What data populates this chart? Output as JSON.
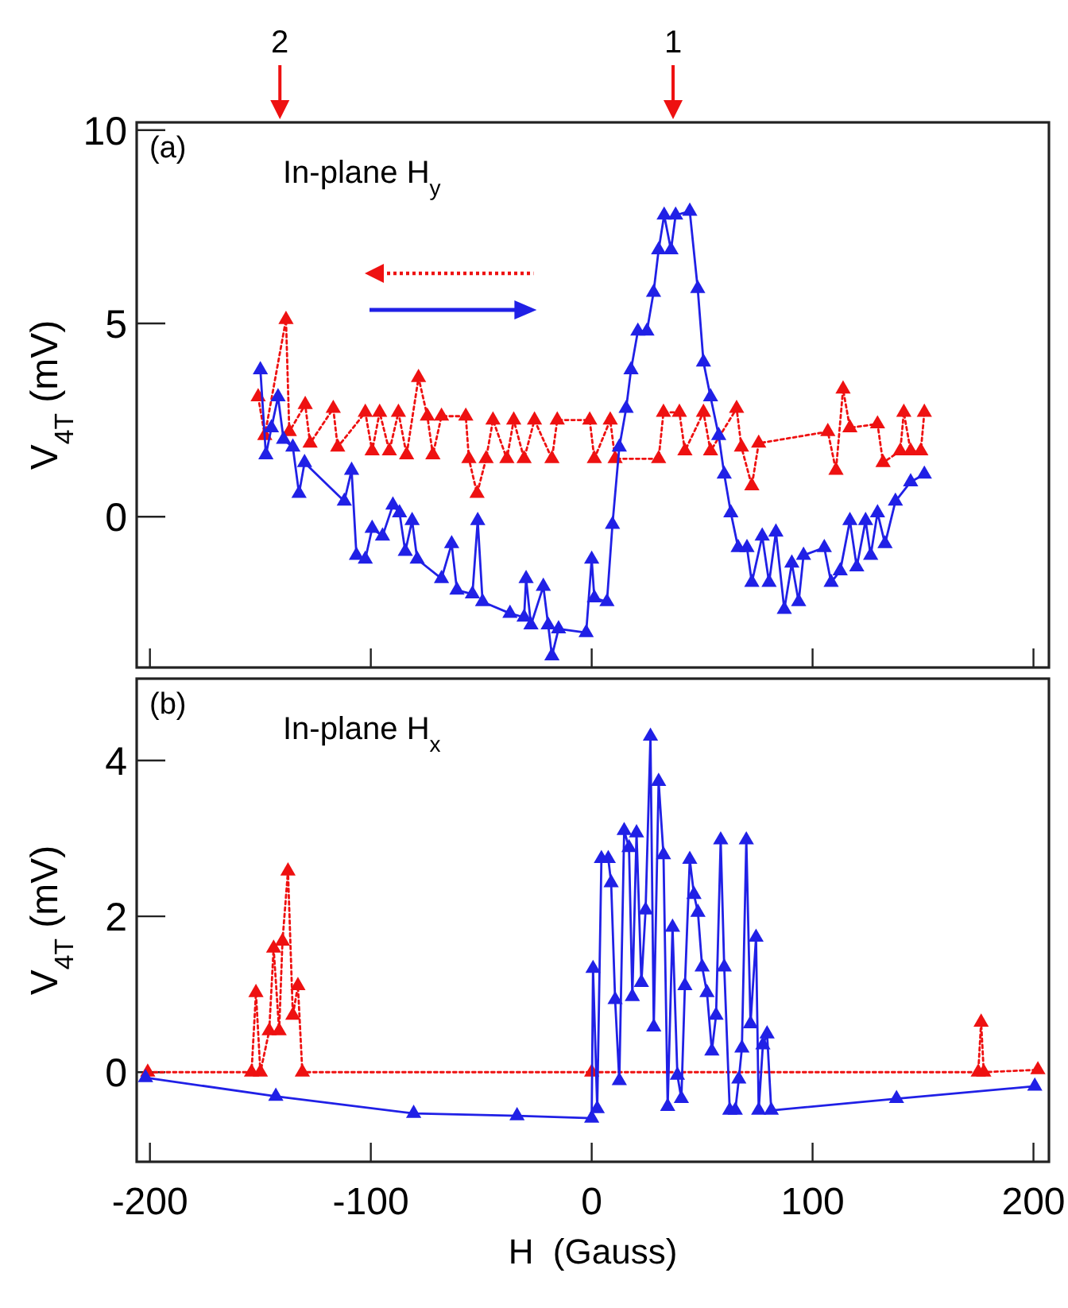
{
  "chart_data": [
    {
      "type": "line",
      "ylabel": "V$_{4T}$ (mV)",
      "xlim": [
        -206,
        207
      ],
      "xticks": [
        -200,
        -100,
        0,
        100,
        200
      ],
      "ylim": [
        -3.9,
        10.2
      ],
      "yticks": [
        0,
        5,
        10
      ],
      "tick_labels": "y",
      "marker": "triangle",
      "annotations": [
        "(a)",
        "In-plane H$_{y}$",
        "2",
        "1"
      ],
      "series": [
        {
          "color": "#ee1111",
          "line_style": "dotted",
          "x": [
            -151,
            -148,
            -138.4,
            -136.9,
            -129.7,
            -127.5,
            -117,
            -115,
            -102.5,
            -99.4,
            -96,
            -91.6,
            -87.5,
            -83.8,
            -78.4,
            -74.4,
            -71.9,
            -68,
            -57,
            -55.6,
            -51.9,
            -47.8,
            -44.7,
            -38.4,
            -35.3,
            -30.6,
            -25.9,
            -18,
            -15.6,
            -0.9,
            1.2,
            8.4,
            10.6,
            30.3,
            32.5,
            39.7,
            42.2,
            50.6,
            53.8,
            65.6,
            67.8,
            72.5,
            75.6,
            106.9,
            110.6,
            113.8,
            116.9,
            129.4,
            131.9,
            139.7,
            141.3,
            144.4,
            149,
            150.6
          ],
          "values": [
            3.1,
            2.1,
            5.1,
            2.2,
            2.9,
            1.9,
            2.8,
            1.8,
            2.7,
            1.7,
            2.7,
            1.7,
            2.7,
            1.6,
            3.6,
            2.6,
            1.6,
            2.6,
            2.6,
            1.5,
            0.6,
            1.5,
            2.5,
            1.5,
            2.5,
            1.5,
            2.5,
            1.5,
            2.5,
            2.5,
            1.5,
            2.5,
            1.5,
            1.5,
            2.7,
            2.7,
            1.7,
            2.7,
            1.7,
            2.8,
            1.8,
            0.8,
            1.9,
            2.2,
            1.2,
            3.3,
            2.3,
            2.4,
            1.4,
            1.7,
            2.7,
            1.7,
            1.7,
            2.7
          ]
        },
        {
          "color": "#2020e6",
          "line_style": "solid",
          "x": [
            -150,
            -147.5,
            -145,
            -142,
            -139.5,
            -135.3,
            -132.5,
            -130,
            -112,
            -108.7,
            -106.5,
            -102.5,
            -99.4,
            -94.7,
            -90,
            -87,
            -84.4,
            -81.3,
            -79,
            -68,
            -63.4,
            -61,
            -54,
            -51.6,
            -49.4,
            -37,
            -30.6,
            -29.7,
            -27.5,
            -21.9,
            -19.7,
            -18,
            -15,
            -2.5,
            0,
            1.2,
            6.9,
            9.4,
            12.5,
            15.6,
            17.8,
            20.9,
            25,
            28,
            30.3,
            32.8,
            35.9,
            38,
            44.4,
            48,
            50.6,
            53.8,
            57.5,
            60,
            63,
            66.3,
            70.3,
            72.5,
            77.2,
            80.3,
            83.4,
            87.2,
            90.6,
            93.7,
            95.9,
            105.3,
            108.4,
            112.5,
            116.9,
            120,
            124,
            126.3,
            129.4,
            132.8,
            137.5,
            144.4,
            150.6
          ],
          "values": [
            3.8,
            1.6,
            2.3,
            3.1,
            2.0,
            1.8,
            0.6,
            1.4,
            0.4,
            1.2,
            -1.0,
            -1.1,
            -0.3,
            -0.5,
            0.3,
            0.1,
            -0.9,
            -0.1,
            -1.1,
            -1.6,
            -0.7,
            -1.9,
            -2.0,
            -0.1,
            -2.2,
            -2.5,
            -2.6,
            -1.6,
            -2.8,
            -1.8,
            -2.8,
            -3.6,
            -2.9,
            -3.0,
            -1.1,
            -2.1,
            -2.2,
            -0.2,
            1.8,
            2.8,
            3.8,
            4.8,
            4.8,
            5.8,
            6.9,
            7.8,
            6.9,
            7.8,
            7.9,
            5.9,
            4.0,
            3.1,
            2.1,
            1.1,
            0.1,
            -0.8,
            -0.8,
            -1.7,
            -0.5,
            -1.7,
            -0.4,
            -2.4,
            -1.2,
            -2.2,
            -1.0,
            -0.8,
            -1.7,
            -1.4,
            -0.1,
            -1.3,
            -0.1,
            -1.0,
            0.1,
            -0.7,
            0.4,
            0.9,
            1.1
          ]
        }
      ]
    },
    {
      "type": "line",
      "xlabel": "H  (Gauss)",
      "ylabel": "V$_{4T}$ (mV)",
      "xlim": [
        -206,
        207
      ],
      "xticks": [
        -200,
        -100,
        0,
        100,
        200
      ],
      "ylim": [
        -1.15,
        5.05
      ],
      "yticks": [
        0,
        2,
        4
      ],
      "marker": "triangle",
      "annotations": [
        "(b)",
        "In-plane H$_{x}$"
      ],
      "series": [
        {
          "color": "#ee1111",
          "line_style": "dotted",
          "x": [
            -201,
            -154,
            -152,
            -150,
            -146,
            -144,
            -141.5,
            -140,
            -137.5,
            -135.3,
            -133,
            -131,
            0,
            175,
            176.3,
            177.5,
            202
          ],
          "values": [
            0,
            0,
            1.02,
            0,
            0.53,
            1.59,
            0.53,
            1.68,
            2.58,
            0.73,
            1.11,
            0,
            0,
            0,
            0.64,
            0,
            0.03
          ]
        },
        {
          "color": "#2020e6",
          "line_style": "solid",
          "x": [
            -202,
            -143,
            -80.6,
            -33.8,
            0,
            0.6,
            2.5,
            4.4,
            7.5,
            8.8,
            10.6,
            12.5,
            14.7,
            16.9,
            18.4,
            20.3,
            22.5,
            24.4,
            26.6,
            28.1,
            30.3,
            32.5,
            34.4,
            36.6,
            38.8,
            40.6,
            42.2,
            44.4,
            46.3,
            48.1,
            50,
            52.2,
            54.4,
            56.3,
            58.4,
            60,
            62.5,
            65,
            66.6,
            68,
            70,
            71.9,
            74.4,
            75.6,
            77.5,
            79.4,
            81.3,
            138,
            200.6
          ],
          "values": [
            -0.07,
            -0.31,
            -0.53,
            -0.56,
            -0.59,
            1.33,
            -0.47,
            2.74,
            2.74,
            2.43,
            0.93,
            -0.11,
            3.1,
            2.88,
            0.97,
            3.07,
            1.15,
            2.08,
            4.31,
            0.58,
            3.73,
            2.79,
            -0.44,
            1.86,
            -0.04,
            -0.34,
            1.11,
            2.73,
            2.28,
            2.05,
            1.35,
            1.02,
            0.27,
            0.73,
            2.98,
            1.35,
            -0.49,
            -0.49,
            -0.09,
            0.31,
            2.98,
            0.62,
            1.73,
            -0.49,
            0.35,
            0.49,
            -0.49,
            -0.34,
            -0.18
          ]
        }
      ]
    }
  ]
}
